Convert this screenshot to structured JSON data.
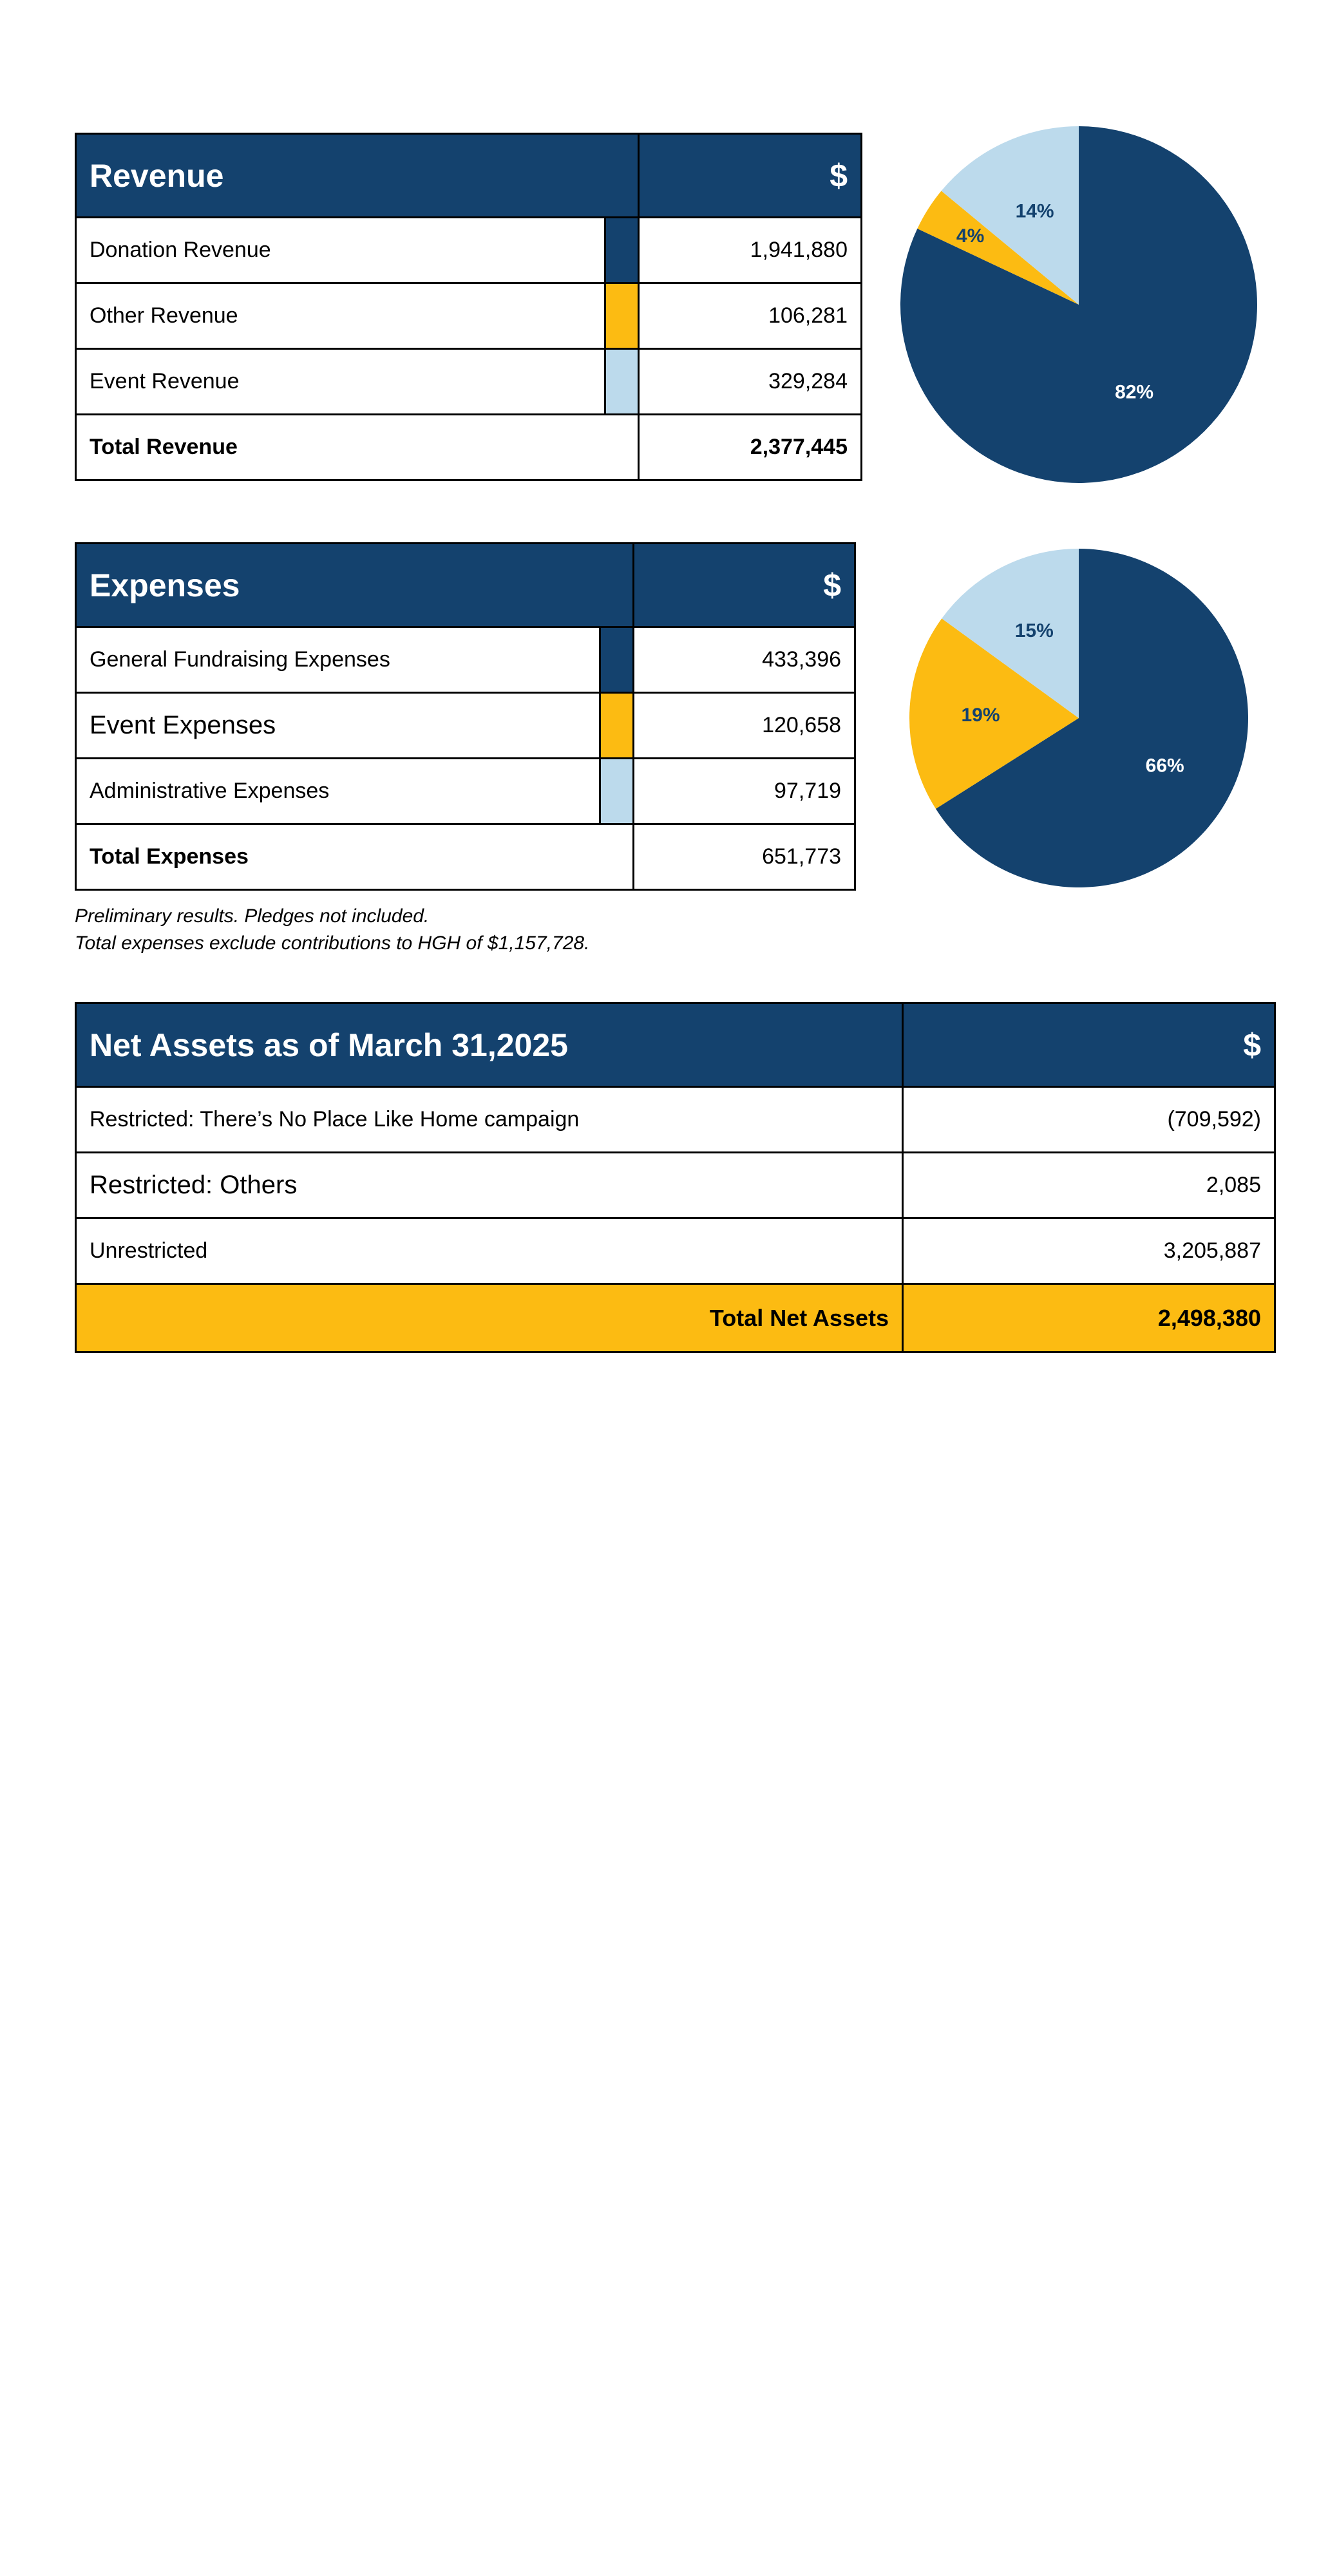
{
  "colors": {
    "navy": "#14426e",
    "gold": "#fcbb12",
    "lightblue": "#bcdaec",
    "white": "#ffffff"
  },
  "revenue": {
    "title": "Revenue",
    "currency": "$",
    "rows": [
      {
        "label": "Donation Revenue",
        "value": "1,941,880",
        "color": "#14426e"
      },
      {
        "label": "Other Revenue",
        "value": "106,281",
        "color": "#fcbb12"
      },
      {
        "label": "Event Revenue",
        "value": "329,284",
        "color": "#bcdaec"
      }
    ],
    "total_label": "Total Revenue",
    "total_value": "2,377,445"
  },
  "expenses": {
    "title": "Expenses",
    "currency": "$",
    "rows": [
      {
        "label": "General Fundraising Expenses",
        "value": "433,396",
        "color": "#14426e"
      },
      {
        "label": "Event Expenses",
        "value": "120,658",
        "color": "#fcbb12"
      },
      {
        "label": "Administrative Expenses",
        "value": "97,719",
        "color": "#bcdaec"
      }
    ],
    "total_label": "Total Expenses",
    "total_value": "651,773"
  },
  "notes": {
    "line1": "Preliminary results. Pledges not included.",
    "line2": "Total expenses exclude contributions to HGH of $1,157,728."
  },
  "net_assets": {
    "title": "Net Assets as of March 31,2025",
    "currency": "$",
    "rows": [
      {
        "label": "Restricted: There’s No Place Like Home campaign",
        "value": "(709,592)"
      },
      {
        "label": "Restricted: Others",
        "value": "2,085"
      },
      {
        "label": "Unrestricted",
        "value": "3,205,887"
      }
    ],
    "total_label": "Total Net Assets",
    "total_value": "2,498,380"
  },
  "chart_data": [
    {
      "type": "pie",
      "slices": [
        {
          "category": "Donation Revenue",
          "value": 82,
          "label": "82%",
          "color": "#14426e"
        },
        {
          "category": "Other Revenue",
          "value": 4,
          "label": "4%",
          "color": "#fcbb12"
        },
        {
          "category": "Event Revenue",
          "value": 14,
          "label": "14%",
          "color": "#bcdaec"
        }
      ]
    },
    {
      "type": "pie",
      "slices": [
        {
          "category": "General Fundraising Expenses",
          "value": 66,
          "label": "66%",
          "color": "#14426e"
        },
        {
          "category": "Event Expenses",
          "value": 19,
          "label": "19%",
          "color": "#fcbb12"
        },
        {
          "category": "Administrative Expenses",
          "value": 15,
          "label": "15%",
          "color": "#bcdaec"
        }
      ]
    }
  ]
}
